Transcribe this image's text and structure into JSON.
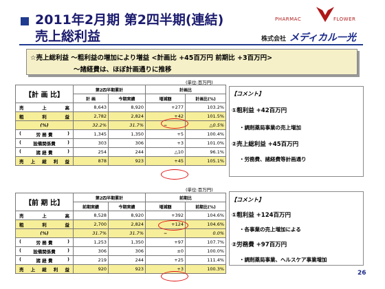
{
  "header": {
    "title_line1": "2011年2月期 第2四半期(連結)",
    "title_line2": "売上総利益",
    "logo_left": "PHARMAC",
    "logo_right": "FLOWER",
    "company_prefix": "株式会社",
    "company_name": "メディカル一光"
  },
  "summary": {
    "line1": "☆売上総利益 〜粗利益の増加により増益 <計画比 +45百万円 前期比 +3百万円>",
    "line2": "〜諸経費は、ほぼ計画通りに推移"
  },
  "unit_label": "(単位:百万円)",
  "plan_table": {
    "label": "【計 画 比】",
    "h_period": "第2四半期累計",
    "h_compare": "計画比",
    "h_col1": "計 画",
    "h_col2": "今期実績",
    "h_col3": "増減額",
    "h_col4": "計画比(%)",
    "rows": [
      {
        "label": "売 上 高",
        "c1": "8,643",
        "c2": "8,920",
        "c3": "+277",
        "c4": "103.2%"
      },
      {
        "label": "粗 利 益",
        "c1": "2,782",
        "c2": "2,824",
        "c3": "+42",
        "c4": "101.5%"
      },
      {
        "label": "(%)",
        "c1": "32.2%",
        "c2": "31.7%",
        "c3": "−",
        "c4": "△0.5%"
      },
      {
        "label": "労 務 費",
        "c1": "1,345",
        "c2": "1,350",
        "c3": "+5",
        "c4": "100.4%"
      },
      {
        "label": "設備関係費",
        "c1": "303",
        "c2": "306",
        "c3": "+3",
        "c4": "101.0%"
      },
      {
        "label": "諸 経 費",
        "c1": "254",
        "c2": "244",
        "c3": "△10",
        "c4": "96.1%"
      },
      {
        "label": "売上総利益",
        "c1": "878",
        "c2": "923",
        "c3": "+45",
        "c4": "105.1%"
      }
    ]
  },
  "prior_table": {
    "label": "【前 期 比】",
    "h_period": "第2四半期累計",
    "h_compare": "前期比",
    "h_col1": "前期実績",
    "h_col2": "今期実績",
    "h_col3": "増減額",
    "h_col4": "前期比(%)",
    "rows": [
      {
        "label": "売 上 高",
        "c1": "8,528",
        "c2": "8,920",
        "c3": "+392",
        "c4": "104.6%"
      },
      {
        "label": "粗 利 益",
        "c1": "2,700",
        "c2": "2,824",
        "c3": "+124",
        "c4": "104.6%"
      },
      {
        "label": "(%)",
        "c1": "31.7%",
        "c2": "31.7%",
        "c3": "−",
        "c4": "0.0%"
      },
      {
        "label": "労 務 費",
        "c1": "1,253",
        "c2": "1,350",
        "c3": "+97",
        "c4": "107.7%"
      },
      {
        "label": "設備関係費",
        "c1": "306",
        "c2": "306",
        "c3": "±0",
        "c4": "100.0%"
      },
      {
        "label": "諸 経 費",
        "c1": "219",
        "c2": "244",
        "c3": "+25",
        "c4": "111.4%"
      },
      {
        "label": "売上総利益",
        "c1": "920",
        "c2": "923",
        "c3": "+3",
        "c4": "100.3%"
      }
    ]
  },
  "plan_comment": {
    "title": "【コメント】",
    "item1": "①粗利益 +42百万円",
    "item1_sub": "・調剤薬局事業の売上増加",
    "item2": "②売上総利益 +45百万円",
    "item2_sub": "・労務費、諸経費等計画通り"
  },
  "prior_comment": {
    "title": "【コメント】",
    "item1": "①粗利益 +124百万円",
    "item1_sub": "・各事業の売上増加による",
    "item2": "②労務費 +97百万円",
    "item2_sub": "・調剤薬局事業、ヘルスケア事業増加"
  },
  "page_number": "26",
  "colors": {
    "title": "#1a1a6e",
    "highlight_row": "#f7ee9a",
    "summary_bg": "#f5f0c8",
    "oval": "#e01010"
  }
}
